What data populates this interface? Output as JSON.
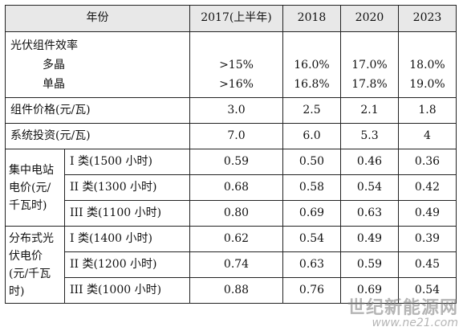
{
  "header": {
    "label": "年份",
    "years": [
      "2017(上半年)",
      "2018",
      "2020",
      "2023"
    ]
  },
  "efficiency": {
    "title": "光伏组件效率",
    "rows": [
      {
        "label": "多晶",
        "values": [
          ">15%",
          "16.0%",
          "17.0%",
          "18.0%"
        ]
      },
      {
        "label": "单晶",
        "values": [
          ">16%",
          "16.8%",
          "17.8%",
          "19.0%"
        ]
      }
    ]
  },
  "module_price": {
    "label": "组件价格(元/瓦)",
    "values": [
      "3.0",
      "2.5",
      "2.1",
      "1.8"
    ]
  },
  "system_investment": {
    "label": "系统投资(元/瓦)",
    "values": [
      "7.0",
      "6.0",
      "5.3",
      "4"
    ]
  },
  "centralized": {
    "label": "集中电站电价(元/千瓦时)",
    "rows": [
      {
        "label": "I 类(1500 小时)",
        "values": [
          "0.59",
          "0.50",
          "0.46",
          "0.36"
        ]
      },
      {
        "label": "II 类(1300 小时)",
        "values": [
          "0.68",
          "0.58",
          "0.54",
          "0.42"
        ]
      },
      {
        "label": "III 类(1100 小时)",
        "values": [
          "0.80",
          "0.69",
          "0.63",
          "0.49"
        ]
      }
    ]
  },
  "distributed": {
    "label": "分布式光伏电价(元/千瓦时)",
    "rows": [
      {
        "label": "I 类(1400 小时)",
        "values": [
          "0.62",
          "0.54",
          "0.49",
          "0.39"
        ]
      },
      {
        "label": "II 类(1200 小时)",
        "values": [
          "0.74",
          "0.63",
          "0.59",
          "0.45"
        ]
      },
      {
        "label": "III 类(1000 小时)",
        "values": [
          "0.88",
          "0.76",
          "0.69",
          "0.54"
        ]
      }
    ]
  },
  "watermark": {
    "cn": "世纪新能源网",
    "en": "www.ne21.com"
  }
}
